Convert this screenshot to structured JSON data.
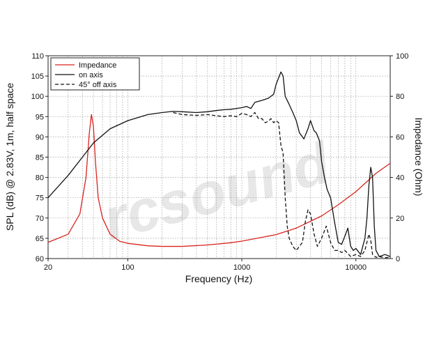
{
  "chart_data": {
    "type": "line",
    "x_scale": "log",
    "xlabel": "Frequency (Hz)",
    "ylabel_left": "SPL (dB) @ 2.83V, 1m, half space",
    "ylabel_right": "Impedance (Ohm)",
    "xlim": [
      20,
      20000
    ],
    "ylim_left": [
      60,
      110
    ],
    "ylim_right": [
      0,
      100
    ],
    "x_ticks": [
      20,
      100,
      1000,
      10000
    ],
    "x_tick_labels": [
      "20",
      "100",
      "1000",
      "10000"
    ],
    "y_left_ticks": [
      60,
      65,
      70,
      75,
      80,
      85,
      90,
      95,
      100,
      105,
      110
    ],
    "y_left_tick_labels": [
      "60",
      "65",
      "70",
      "75",
      "80",
      "85",
      "90",
      "95",
      "100",
      "105",
      "110"
    ],
    "y_right_ticks": [
      0,
      20,
      40,
      60,
      80,
      100
    ],
    "y_right_tick_labels": [
      "0",
      "20",
      "40",
      "60",
      "80",
      "100"
    ],
    "grid": true,
    "legend_position": "top-left",
    "watermark": "rcsound",
    "colors": {
      "impedance": "#d9231d",
      "spl": "#111111",
      "grid": "#9a9a9a",
      "watermark": "#d8d8d8"
    },
    "series": [
      {
        "name": "Impedance",
        "axis": "right",
        "style": "solid",
        "x": [
          20,
          30,
          38,
          43,
          46,
          48,
          50,
          52,
          55,
          60,
          70,
          85,
          100,
          150,
          200,
          300,
          500,
          800,
          1000,
          2000,
          3000,
          5000,
          7000,
          10000,
          15000,
          20000
        ],
        "y": [
          8,
          12,
          22,
          40,
          62,
          71,
          65,
          48,
          30,
          20,
          12,
          8.5,
          7.5,
          6.3,
          6,
          6,
          6.7,
          7.8,
          8.6,
          11.8,
          15,
          21,
          26.5,
          33,
          42,
          47
        ]
      },
      {
        "name": "on axis",
        "axis": "left",
        "style": "solid",
        "x": [
          20,
          30,
          40,
          50,
          70,
          100,
          150,
          200,
          250,
          300,
          400,
          500,
          600,
          700,
          800,
          900,
          1000,
          1100,
          1200,
          1300,
          1500,
          1700,
          1900,
          2000,
          2200,
          2300,
          2400,
          2600,
          2800,
          3000,
          3200,
          3500,
          3800,
          4000,
          4300,
          4500,
          4800,
          5000,
          5300,
          5600,
          6000,
          6500,
          7000,
          7500,
          8000,
          8500,
          9000,
          9500,
          10000,
          11000,
          12000,
          12500,
          13000,
          13500,
          14000,
          14500,
          15000,
          16000,
          18000,
          20000
        ],
        "y": [
          75,
          80.5,
          85,
          88.5,
          92,
          94,
          95.5,
          96,
          96.3,
          96.2,
          96,
          96.2,
          96.5,
          96.7,
          96.8,
          97,
          97.2,
          97.5,
          97,
          98.5,
          99,
          99.5,
          100.5,
          103,
          106,
          105,
          100,
          98,
          96,
          94,
          91,
          89.5,
          92,
          94,
          91.5,
          91,
          89,
          84,
          80,
          77,
          75,
          69,
          64,
          63.5,
          65.5,
          67.5,
          63,
          62,
          62.5,
          61,
          65,
          70,
          78,
          82.5,
          80,
          68,
          62,
          60.5,
          61,
          60.5
        ]
      },
      {
        "name": "45° off axis",
        "axis": "left",
        "style": "dashed",
        "x": [
          250,
          300,
          400,
          500,
          600,
          700,
          800,
          900,
          1000,
          1100,
          1200,
          1300,
          1400,
          1500,
          1600,
          1700,
          1800,
          1900,
          2000,
          2100,
          2200,
          2300,
          2400,
          2500,
          2600,
          2700,
          2800,
          3000,
          3200,
          3400,
          3600,
          3800,
          4000,
          4300,
          4600,
          5000,
          5500,
          6000,
          6500,
          7000,
          7500,
          8000,
          9000,
          10000,
          11000,
          12000,
          13000,
          13500,
          14000,
          15000,
          16000,
          18000,
          20000
        ],
        "y": [
          96,
          95.5,
          95.3,
          95.5,
          95.2,
          95,
          95.2,
          95,
          95.8,
          95.5,
          95,
          96,
          94.5,
          94.5,
          93.5,
          93.8,
          94.5,
          93.5,
          94,
          93.5,
          88,
          86,
          75,
          68,
          65,
          64,
          63,
          62,
          63,
          64,
          69,
          72,
          71,
          66,
          63,
          65,
          68,
          64,
          62,
          62,
          61.5,
          62,
          60.5,
          61,
          60.5,
          62,
          66,
          64.5,
          61,
          60.3,
          60.5,
          60.2,
          60.3
        ]
      }
    ]
  }
}
